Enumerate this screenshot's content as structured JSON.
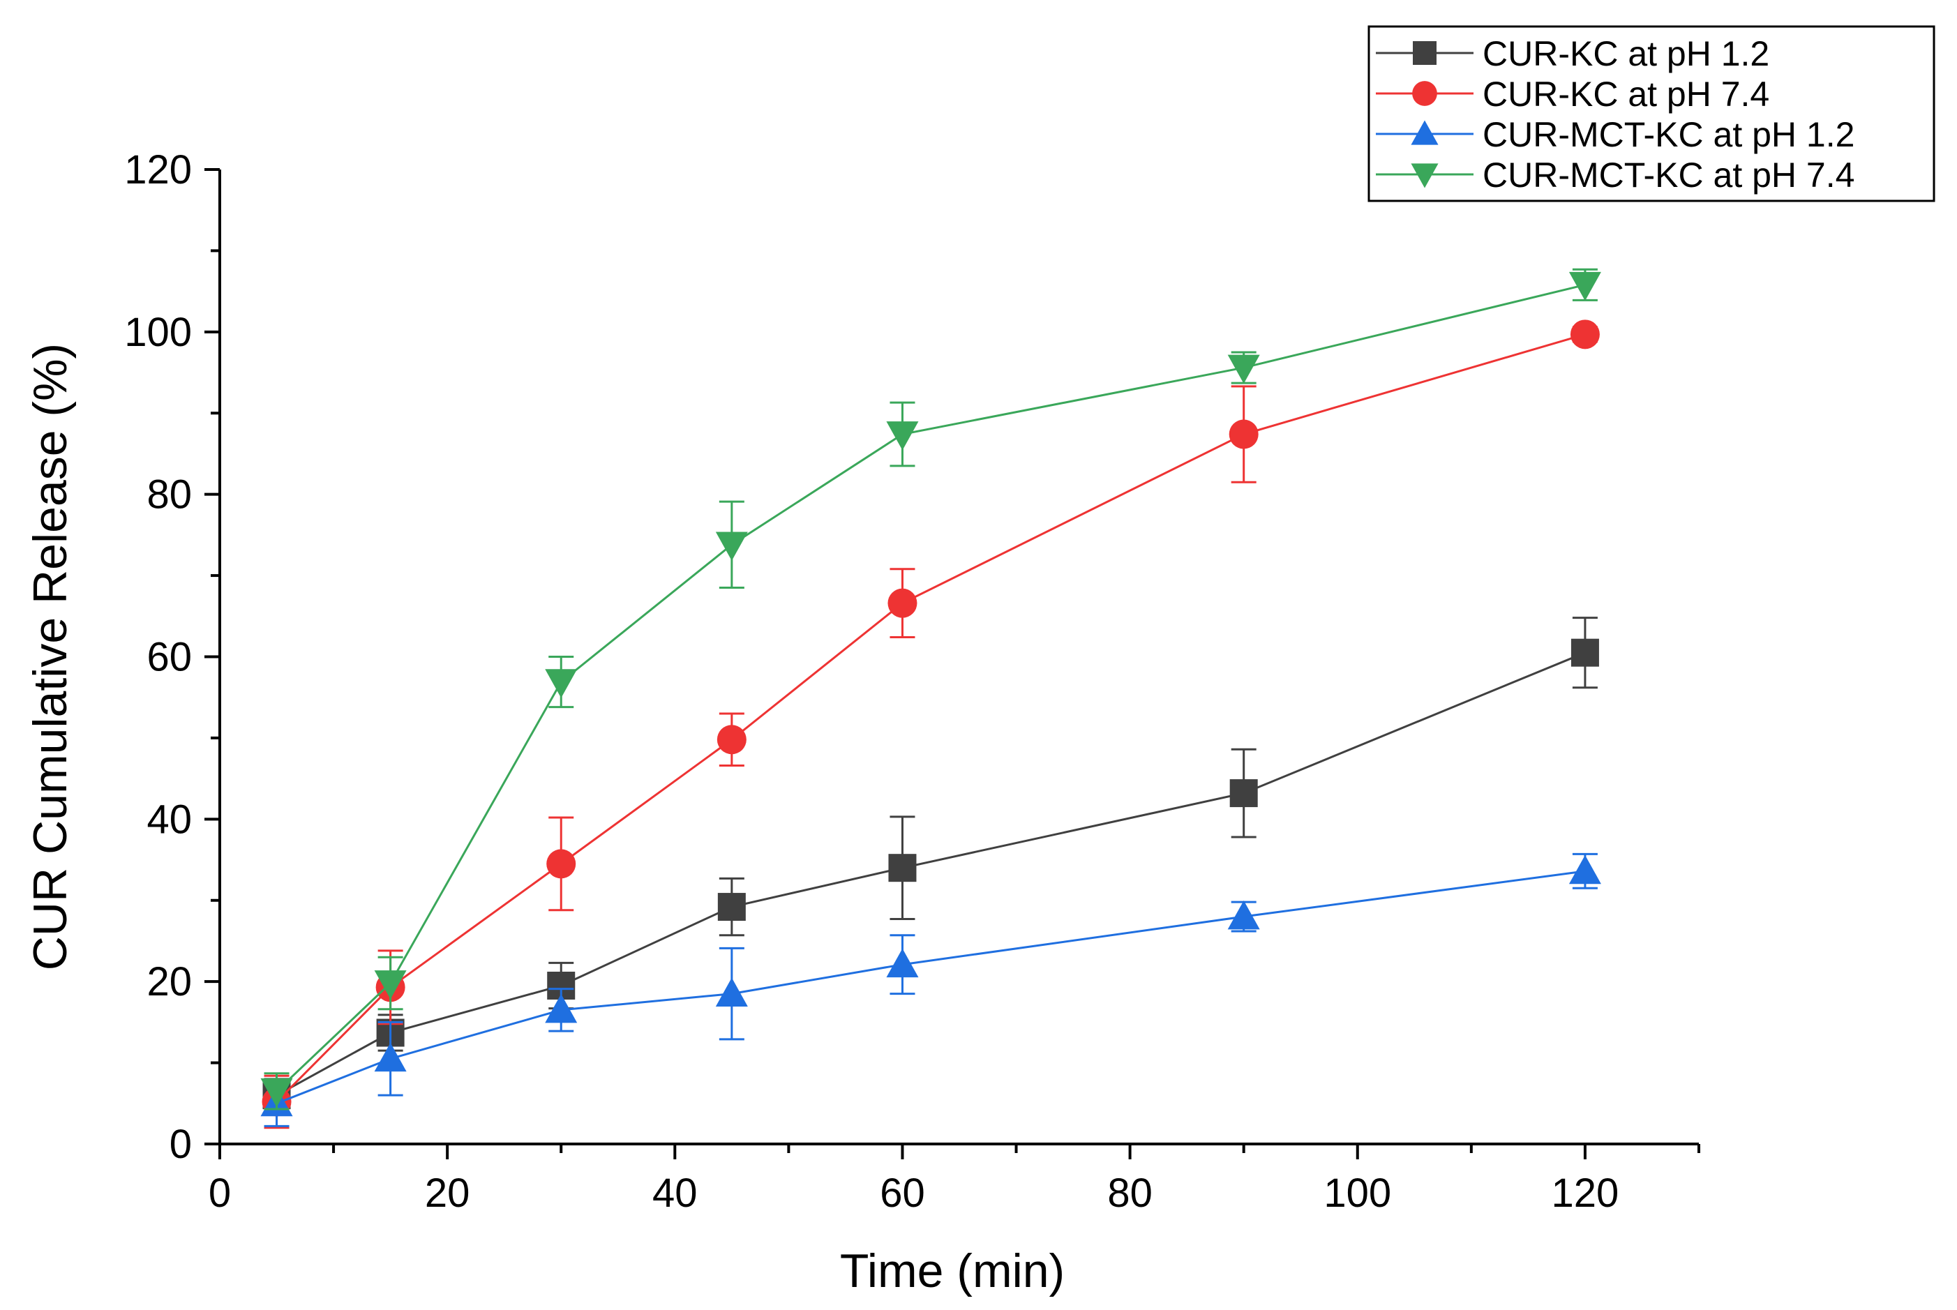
{
  "chart_data": {
    "type": "line",
    "title": "",
    "xlabel": "Time (min)",
    "ylabel": "CUR Cumulative Release (%)",
    "xlim": [
      0,
      130
    ],
    "ylim": [
      0,
      120
    ],
    "xticks": [
      0,
      20,
      40,
      60,
      80,
      100,
      120
    ],
    "yticks": [
      0,
      20,
      40,
      60,
      80,
      100,
      120
    ],
    "x_minor_step": 10,
    "y_minor_step": 10,
    "grid": false,
    "legend_position": "top-right",
    "x": [
      5,
      15,
      30,
      45,
      60,
      90,
      120
    ],
    "series": [
      {
        "name": "CUR-KC at pH 1.2",
        "color": "#404040",
        "marker": "square",
        "values": [
          6,
          13.7,
          19.5,
          29.2,
          34,
          43.2,
          60.5
        ],
        "errors": [
          2,
          2.2,
          2.8,
          3.5,
          6.3,
          5.4,
          4.3
        ]
      },
      {
        "name": "CUR-KC at pH 7.4",
        "color": "#ee3333",
        "marker": "circle",
        "values": [
          5.2,
          19.3,
          34.5,
          49.8,
          66.6,
          87.4,
          99.7
        ],
        "errors": [
          3.2,
          4.5,
          5.7,
          3.2,
          4.2,
          5.9,
          0.9
        ]
      },
      {
        "name": "CUR-MCT-KC at pH 1.2",
        "color": "#1f6fe0",
        "marker": "triangle-up",
        "values": [
          5,
          10.5,
          16.5,
          18.5,
          22.1,
          28,
          33.6
        ],
        "errors": [
          2.8,
          4.5,
          2.6,
          5.6,
          3.6,
          1.8,
          2.1
        ]
      },
      {
        "name": "CUR-MCT-KC at pH 7.4",
        "color": "#3aa75a",
        "marker": "triangle-down",
        "values": [
          6.5,
          19.8,
          56.9,
          73.8,
          87.4,
          95.6,
          105.8
        ],
        "errors": [
          2.2,
          3.2,
          3.1,
          5.3,
          3.9,
          1.9,
          1.9
        ]
      }
    ]
  }
}
